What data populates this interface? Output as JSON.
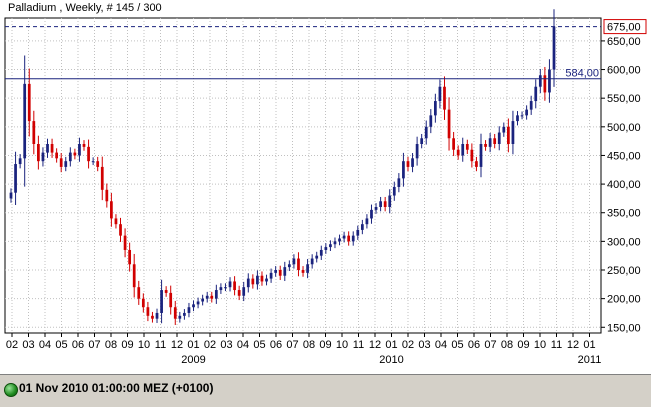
{
  "chart_data": {
    "type": "candlestick",
    "title": "Palladium , Weekly, # 145 / 300",
    "ylim": [
      140,
      690
    ],
    "y_ticks": [
      150,
      200,
      250,
      300,
      350,
      400,
      450,
      500,
      550,
      600,
      650
    ],
    "y_tick_labels": [
      "150,00",
      "200,00",
      "250,00",
      "300,00",
      "350,00",
      "400,00",
      "450,00",
      "500,00",
      "550,00",
      "600,00",
      "650,00"
    ],
    "x_ticks": [
      "02",
      "03",
      "04",
      "05",
      "06",
      "07",
      "08",
      "09",
      "10",
      "11",
      "12",
      "01",
      "02",
      "03",
      "04",
      "05",
      "06",
      "07",
      "08",
      "09",
      "10",
      "11",
      "12",
      "01",
      "02",
      "03",
      "04",
      "05",
      "06",
      "07",
      "08",
      "09",
      "10",
      "11",
      "12",
      "01"
    ],
    "year_labels": [
      {
        "label": "2009",
        "tick_index": 11
      },
      {
        "label": "2010",
        "tick_index": 23
      },
      {
        "label": "2011",
        "tick_index": 35
      }
    ],
    "last_price_label": "675,00",
    "last_price": 675,
    "reference_line_label": "584,00",
    "reference_line": 584,
    "up_color": "#1a237e",
    "down_color": "#d10000",
    "closes": [
      385,
      435,
      445,
      575,
      510,
      470,
      440,
      455,
      470,
      455,
      445,
      430,
      440,
      455,
      450,
      470,
      465,
      440,
      440,
      430,
      390,
      370,
      340,
      330,
      310,
      285,
      260,
      220,
      200,
      185,
      170,
      165,
      175,
      215,
      210,
      185,
      165,
      170,
      175,
      185,
      190,
      195,
      200,
      205,
      200,
      215,
      220,
      220,
      230,
      215,
      205,
      220,
      235,
      225,
      240,
      230,
      235,
      245,
      250,
      240,
      255,
      260,
      270,
      250,
      245,
      260,
      270,
      275,
      285,
      290,
      295,
      300,
      305,
      310,
      300,
      310,
      320,
      330,
      340,
      355,
      360,
      370,
      360,
      380,
      395,
      410,
      440,
      430,
      445,
      470,
      480,
      500,
      520,
      545,
      570,
      530,
      480,
      460,
      450,
      470,
      460,
      440,
      430,
      470,
      465,
      480,
      470,
      490,
      500,
      470,
      510,
      520,
      520,
      530,
      545,
      570,
      590,
      560,
      600,
      675
    ],
    "status_text": "01 Nov 2010 01:00:00  MEZ (+0100)"
  },
  "colors": {
    "background": "#ffffff",
    "grid": "#c0c0c0",
    "reference_line": "#1a237e",
    "last_price_box": "#d10000"
  }
}
